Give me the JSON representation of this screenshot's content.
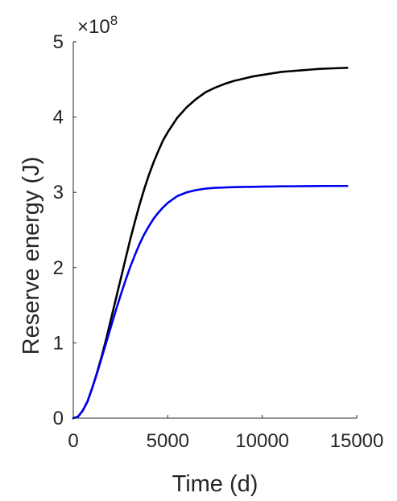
{
  "chart_data": {
    "type": "line",
    "title": "",
    "xlabel": "Time (d)",
    "ylabel": "Reserve energy (J)",
    "exponent_prefix": "×10",
    "exponent_power": "8",
    "xlim": [
      0,
      15000
    ],
    "ylim": [
      0,
      5
    ],
    "y_scale_factor": 100000000,
    "x_ticks": [
      0,
      5000,
      10000,
      15000
    ],
    "x_tick_labels": [
      "0",
      "5000",
      "10000",
      "15000"
    ],
    "y_ticks": [
      0,
      1,
      2,
      3,
      4,
      5
    ],
    "y_tick_labels": [
      "0",
      "1",
      "2",
      "3",
      "4",
      "5"
    ],
    "grid": false,
    "legend": "none",
    "series": [
      {
        "color": "#000000",
        "x": [
          0,
          250,
          500,
          750,
          1000,
          1250,
          1500,
          1750,
          2000,
          2250,
          2500,
          2750,
          3000,
          3250,
          3500,
          3750,
          4000,
          4250,
          4500,
          4750,
          5000,
          5500,
          6000,
          6500,
          7000,
          7500,
          8000,
          8500,
          9000,
          9500,
          10000,
          10500,
          11000,
          11500,
          12000,
          12500,
          13000,
          13500,
          14000,
          14500
        ],
        "y": [
          0,
          0.02,
          0.1,
          0.22,
          0.4,
          0.6,
          0.82,
          1.06,
          1.32,
          1.58,
          1.84,
          2.1,
          2.36,
          2.6,
          2.83,
          3.04,
          3.23,
          3.4,
          3.55,
          3.69,
          3.8,
          3.99,
          4.13,
          4.24,
          4.33,
          4.39,
          4.44,
          4.48,
          4.51,
          4.54,
          4.56,
          4.58,
          4.6,
          4.61,
          4.62,
          4.63,
          4.64,
          4.645,
          4.65,
          4.655
        ]
      },
      {
        "color": "#0000ee",
        "x": [
          0,
          250,
          500,
          750,
          1000,
          1250,
          1500,
          1750,
          2000,
          2250,
          2500,
          2750,
          3000,
          3250,
          3500,
          3750,
          4000,
          4250,
          4500,
          4750,
          5000,
          5500,
          6000,
          6500,
          7000,
          7500,
          8000,
          8500,
          9000,
          9500,
          10000,
          10500,
          11000,
          11500,
          12000,
          12500,
          13000,
          13500,
          14000,
          14500
        ],
        "y": [
          0,
          0.02,
          0.1,
          0.22,
          0.4,
          0.59,
          0.8,
          1.01,
          1.22,
          1.43,
          1.63,
          1.82,
          2.0,
          2.16,
          2.31,
          2.44,
          2.55,
          2.65,
          2.73,
          2.8,
          2.86,
          2.95,
          3.0,
          3.03,
          3.05,
          3.06,
          3.065,
          3.07,
          3.072,
          3.074,
          3.076,
          3.078,
          3.08,
          3.081,
          3.082,
          3.083,
          3.084,
          3.085,
          3.085,
          3.085
        ]
      }
    ]
  }
}
